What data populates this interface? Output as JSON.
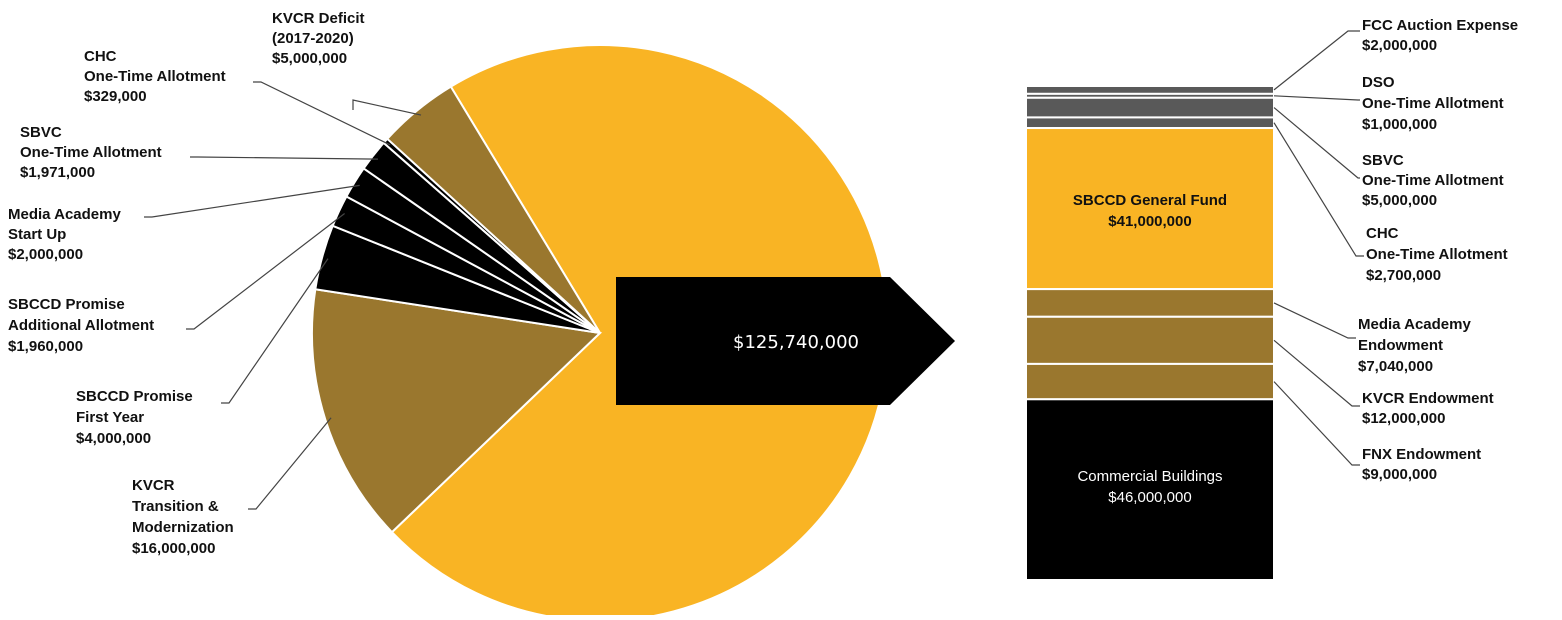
{
  "colors": {
    "gold": "#F9B424",
    "bronze": "#9A772E",
    "black": "#000000",
    "gray": "#595959",
    "leader": "#444444"
  },
  "arrow": {
    "label": "$125,740,000"
  },
  "chart_data": [
    {
      "type": "pie",
      "title": "",
      "slices": [
        {
          "key": "main",
          "value": 78480000,
          "color": "gold",
          "label": []
        },
        {
          "key": "kvcr-transition",
          "value": 16000000,
          "color": "bronze",
          "label": [
            "KVCR",
            "Transition &",
            "Modernization",
            "$16,000,000"
          ]
        },
        {
          "key": "promise-first",
          "value": 4000000,
          "color": "black",
          "label": [
            "SBCCD Promise",
            "First Year",
            "$4,000,000"
          ]
        },
        {
          "key": "promise-add",
          "value": 1960000,
          "color": "black",
          "label": [
            "SBCCD Promise",
            "Additional Allotment",
            "$1,960,000"
          ]
        },
        {
          "key": "media-startup",
          "value": 2000000,
          "color": "black",
          "label": [
            "Media Academy",
            "Start Up",
            "$2,000,000"
          ]
        },
        {
          "key": "sbvc-onetime",
          "value": 1971000,
          "color": "black",
          "label": [
            "SBVC",
            "One-Time Allotment",
            "$1,971,000"
          ]
        },
        {
          "key": "chc-onetime",
          "value": 329000,
          "color": "black",
          "label": [
            "CHC",
            "One-Time Allotment",
            "$329,000"
          ]
        },
        {
          "key": "kvcr-deficit",
          "value": 5000000,
          "color": "bronze",
          "label": [
            "KVCR Deficit",
            "(2017-2020)",
            "$5,000,000"
          ]
        }
      ]
    },
    {
      "type": "bar",
      "stacked": true,
      "title": "",
      "segments_top_to_bottom": [
        {
          "key": "fcc",
          "value": 2000000,
          "color": "gray",
          "label": [
            "FCC Auction Expense",
            "$2,000,000"
          ]
        },
        {
          "key": "dso",
          "value": 1000000,
          "color": "gray",
          "label": [
            "DSO",
            "One-Time Allotment",
            "$1,000,000"
          ]
        },
        {
          "key": "sbvc",
          "value": 5000000,
          "color": "gray",
          "label": [
            "SBVC",
            "One-Time Allotment",
            "$5,000,000"
          ]
        },
        {
          "key": "chc",
          "value": 2700000,
          "color": "gray",
          "label": [
            "CHC",
            "One-Time Allotment",
            "$2,700,000"
          ]
        },
        {
          "key": "general",
          "value": 41000000,
          "color": "gold",
          "label": [
            "SBCCD General Fund",
            "$41,000,000"
          ]
        },
        {
          "key": "media-end",
          "value": 7040000,
          "color": "bronze",
          "label": [
            "Media Academy",
            "Endowment",
            "$7,040,000"
          ]
        },
        {
          "key": "kvcr-end",
          "value": 12000000,
          "color": "bronze",
          "label": [
            "KVCR Endowment",
            "$12,000,000"
          ]
        },
        {
          "key": "fnx-end",
          "value": 9000000,
          "color": "bronze",
          "label": [
            "FNX Endowment",
            "$9,000,000"
          ]
        },
        {
          "key": "commercial",
          "value": 46000000,
          "color": "black",
          "label": [
            "Commercial Buildings",
            "$46,000,000"
          ]
        }
      ]
    }
  ]
}
